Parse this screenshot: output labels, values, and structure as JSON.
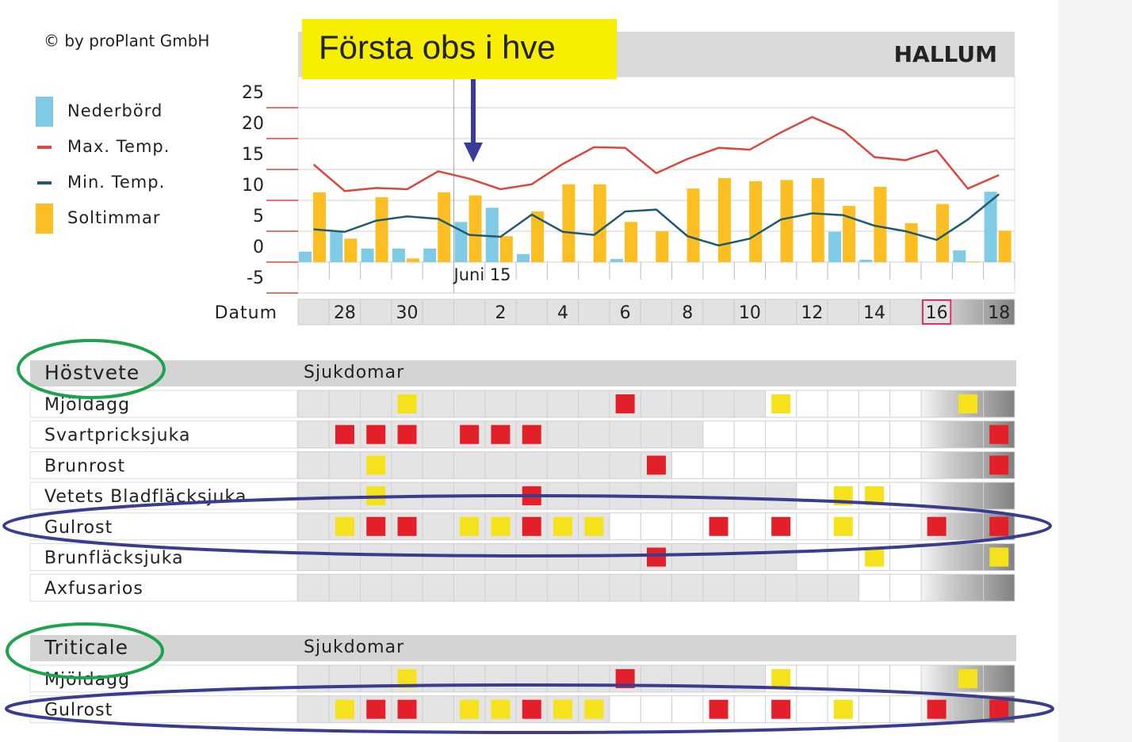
{
  "header": {
    "copyright": "© by proPlant GmbH",
    "station": "HALLUM",
    "callout": "Första obs i hve"
  },
  "chart_data": {
    "type": "combo",
    "x_label": "Datum",
    "annotation": "Juni 15",
    "categories": [
      null,
      "28",
      null,
      "30",
      null,
      null,
      "2",
      null,
      "4",
      null,
      "6",
      null,
      "8",
      null,
      "10",
      null,
      "12",
      null,
      "14",
      null,
      "16",
      null,
      "18"
    ],
    "highlight": "16",
    "series": [
      {
        "name": "Nederbörd",
        "color": "#7fcbe5",
        "kind": "bar",
        "values": [
          1.7,
          4.9,
          2.2,
          2.2,
          2.2,
          6.5,
          8.8,
          1.3,
          0,
          0,
          0.5,
          0,
          0,
          0,
          0,
          0,
          0,
          4.9,
          0.4,
          0,
          0,
          1.9,
          11.4
        ]
      },
      {
        "name": "Max. Temp.",
        "color": "#d9473d",
        "kind": "line",
        "values": [
          15.8,
          11.5,
          12,
          11.8,
          14.7,
          13.5,
          11.8,
          12.6,
          15.9,
          18.6,
          18.5,
          14.4,
          16.7,
          18.5,
          18.2,
          21,
          23.5,
          21.3,
          17,
          16.5,
          18.1,
          11.9,
          14.1
        ]
      },
      {
        "name": "Min. Temp.",
        "color": "#1f5a6e",
        "kind": "line",
        "values": [
          5.3,
          4.9,
          6.7,
          7.4,
          7,
          4.4,
          4.1,
          7.7,
          4.9,
          4.4,
          8.2,
          8.5,
          4.2,
          2.7,
          3.8,
          6.9,
          7.9,
          7.6,
          5.9,
          5,
          3.6,
          6.9,
          11
        ]
      },
      {
        "name": "Soltimmar",
        "color": "#fbbf24",
        "kind": "bar",
        "values": [
          11.3,
          3.8,
          10.5,
          0.6,
          11.3,
          10.8,
          4.2,
          8.2,
          12.6,
          12.6,
          6.5,
          5,
          11.9,
          13.6,
          13.1,
          13.3,
          13.6,
          9.1,
          12.2,
          6.3,
          9.4,
          0.1,
          5.1
        ]
      }
    ],
    "ylim": [
      -5,
      30
    ],
    "yticks": [
      -5,
      0,
      5,
      10,
      15,
      20,
      25
    ]
  },
  "grids": [
    {
      "crop": "Höstvete",
      "heading": "Sjukdomar",
      "outlook_from": 20,
      "rows": [
        {
          "name": "Mjöldagg",
          "forecast_from": 15,
          "levels": [
            0,
            0,
            0,
            1,
            0,
            0,
            0,
            0,
            0,
            0,
            2,
            0,
            0,
            0,
            0,
            1,
            0,
            0,
            0,
            0,
            0,
            1,
            0
          ]
        },
        {
          "name": "Svartpricksjuka",
          "forecast_from": 13,
          "levels": [
            0,
            2,
            2,
            2,
            0,
            2,
            2,
            2,
            0,
            0,
            0,
            0,
            0,
            0,
            0,
            0,
            0,
            0,
            0,
            0,
            0,
            0,
            2
          ]
        },
        {
          "name": "Brunrost",
          "forecast_from": 12,
          "levels": [
            0,
            0,
            1,
            0,
            0,
            0,
            0,
            0,
            0,
            0,
            0,
            2,
            0,
            0,
            0,
            0,
            0,
            0,
            0,
            0,
            0,
            0,
            2
          ]
        },
        {
          "name": "Vetets Bladfläcksjuka",
          "forecast_from": 16,
          "levels": [
            0,
            0,
            1,
            0,
            0,
            0,
            0,
            2,
            0,
            0,
            0,
            0,
            0,
            0,
            0,
            0,
            0,
            1,
            1,
            0,
            0,
            0,
            0
          ]
        },
        {
          "name": "Gulrost",
          "forecast_from": 10,
          "levels": [
            0,
            1,
            2,
            2,
            0,
            1,
            1,
            2,
            1,
            1,
            0,
            0,
            0,
            2,
            0,
            2,
            0,
            1,
            0,
            0,
            2,
            0,
            2
          ]
        },
        {
          "name": "Brunfläcksjuka",
          "forecast_from": 16,
          "levels": [
            0,
            0,
            0,
            0,
            0,
            0,
            0,
            0,
            0,
            0,
            0,
            2,
            0,
            0,
            0,
            0,
            0,
            0,
            1,
            0,
            0,
            0,
            1
          ]
        },
        {
          "name": "Axfusarios",
          "forecast_from": 18,
          "levels": [
            0,
            0,
            0,
            0,
            0,
            0,
            0,
            0,
            0,
            0,
            0,
            0,
            0,
            0,
            0,
            0,
            0,
            0,
            0,
            0,
            0,
            0,
            0
          ]
        }
      ]
    },
    {
      "crop": "Triticale",
      "heading": "Sjukdomar",
      "outlook_from": 20,
      "rows": [
        {
          "name": "Mjöldagg",
          "forecast_from": 15,
          "levels": [
            0,
            0,
            0,
            1,
            0,
            0,
            0,
            0,
            0,
            0,
            2,
            0,
            0,
            0,
            0,
            1,
            0,
            0,
            0,
            0,
            0,
            1,
            0
          ]
        },
        {
          "name": "Gulrost",
          "forecast_from": 10,
          "levels": [
            0,
            1,
            2,
            2,
            0,
            1,
            1,
            2,
            1,
            1,
            0,
            0,
            0,
            2,
            0,
            2,
            0,
            1,
            0,
            0,
            2,
            0,
            2
          ]
        }
      ]
    }
  ]
}
